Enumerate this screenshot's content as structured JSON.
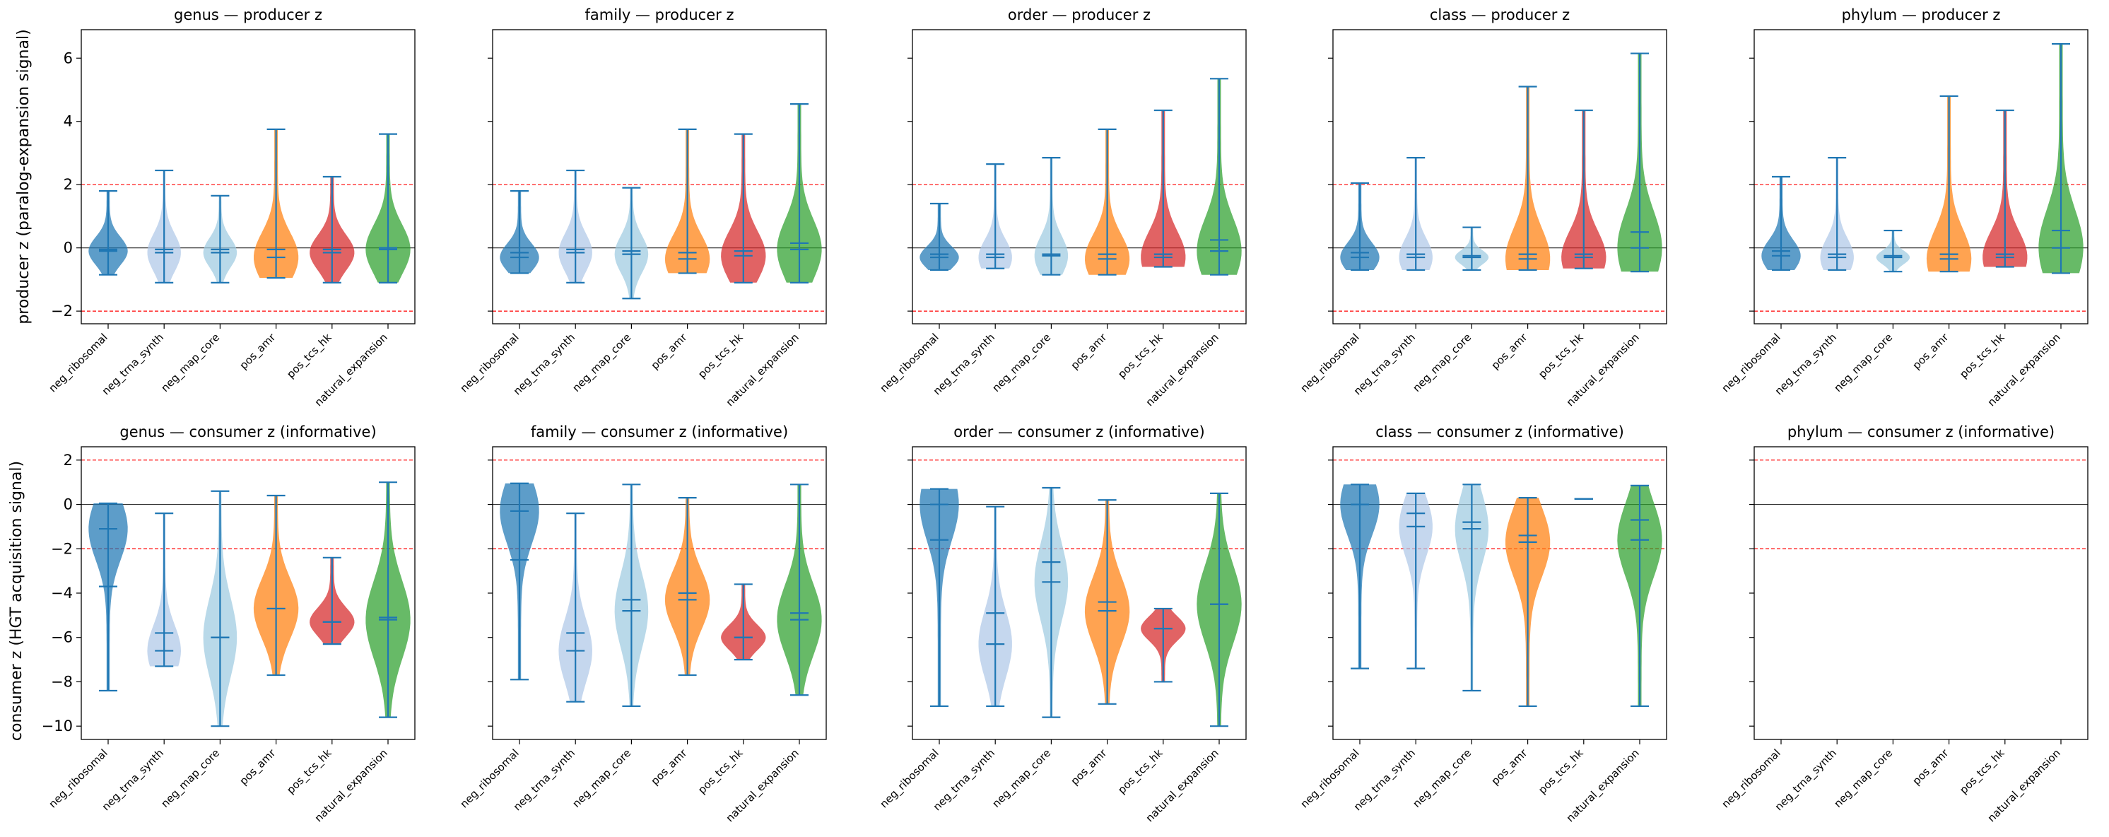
{
  "figure": {
    "row_ylabels": [
      "producer z (paralog-expansion signal)",
      "consumer z (HGT acquisition signal)"
    ],
    "categories": [
      "neg_ribosomal",
      "neg_trna_synth",
      "neg_map_core",
      "pos_amr",
      "pos_tcs_hk",
      "natural_expansion"
    ],
    "colors": {
      "neg_ribosomal": "#1f77b4",
      "neg_trna_synth": "#aec7e8",
      "neg_map_core": "#9ecae1",
      "pos_amr": "#ff7f0e",
      "pos_tcs_hk": "#d62728",
      "natural_expansion": "#2ca02c",
      "whisker": "#1f77b4",
      "threshold_line": "#ff0000",
      "zero_line": "#000000"
    },
    "thresholds": [
      2,
      -2
    ]
  },
  "chart_data": [
    {
      "type": "violin",
      "title": "genus — producer z",
      "ylabel": "producer z (paralog-expansion signal)",
      "ylim": [
        -2.4,
        6.9
      ],
      "yticks": [
        -2,
        0,
        2,
        4,
        6
      ],
      "categories": [
        "neg_ribosomal",
        "neg_trna_synth",
        "neg_map_core",
        "pos_amr",
        "pos_tcs_hk",
        "natural_expansion"
      ],
      "series": [
        {
          "category": "neg_ribosomal",
          "min": -0.85,
          "max": 1.8,
          "mean": -0.05,
          "median": -0.1,
          "width": 0.7
        },
        {
          "category": "neg_trna_synth",
          "min": -1.1,
          "max": 2.45,
          "mean": -0.05,
          "median": -0.15,
          "width": 0.6
        },
        {
          "category": "neg_map_core",
          "min": -1.1,
          "max": 1.65,
          "mean": -0.05,
          "median": -0.15,
          "width": 0.6
        },
        {
          "category": "pos_amr",
          "min": -0.95,
          "max": 3.75,
          "mean": -0.05,
          "median": -0.3,
          "width": 0.8
        },
        {
          "category": "pos_tcs_hk",
          "min": -1.1,
          "max": 2.25,
          "mean": -0.05,
          "median": -0.15,
          "width": 0.8
        },
        {
          "category": "natural_expansion",
          "min": -1.1,
          "max": 3.6,
          "mean": 0.0,
          "median": -0.05,
          "width": 0.8
        }
      ]
    },
    {
      "type": "violin",
      "title": "family — producer z",
      "ylim": [
        -2.4,
        6.9
      ],
      "yticks": [
        -2,
        0,
        2,
        4,
        6
      ],
      "categories": [
        "neg_ribosomal",
        "neg_trna_synth",
        "neg_map_core",
        "pos_amr",
        "pos_tcs_hk",
        "natural_expansion"
      ],
      "series": [
        {
          "category": "neg_ribosomal",
          "min": -0.8,
          "max": 1.8,
          "mean": -0.15,
          "median": -0.3,
          "width": 0.7
        },
        {
          "category": "neg_trna_synth",
          "min": -1.1,
          "max": 2.45,
          "mean": -0.05,
          "median": -0.15,
          "width": 0.6
        },
        {
          "category": "neg_map_core",
          "min": -1.6,
          "max": 1.9,
          "mean": -0.1,
          "median": -0.2,
          "width": 0.6
        },
        {
          "category": "pos_amr",
          "min": -0.8,
          "max": 3.75,
          "mean": -0.15,
          "median": -0.35,
          "width": 0.8
        },
        {
          "category": "pos_tcs_hk",
          "min": -1.1,
          "max": 3.6,
          "mean": -0.1,
          "median": -0.25,
          "width": 0.8
        },
        {
          "category": "natural_expansion",
          "min": -1.1,
          "max": 4.55,
          "mean": 0.15,
          "median": -0.05,
          "width": 0.8
        }
      ]
    },
    {
      "type": "violin",
      "title": "order — producer z",
      "ylim": [
        -2.4,
        6.9
      ],
      "yticks": [
        -2,
        0,
        2,
        4,
        6
      ],
      "categories": [
        "neg_ribosomal",
        "neg_trna_synth",
        "neg_map_core",
        "pos_amr",
        "pos_tcs_hk",
        "natural_expansion"
      ],
      "series": [
        {
          "category": "neg_ribosomal",
          "min": -0.7,
          "max": 1.4,
          "mean": -0.2,
          "median": -0.3,
          "width": 0.7
        },
        {
          "category": "neg_trna_synth",
          "min": -0.65,
          "max": 2.65,
          "mean": -0.2,
          "median": -0.3,
          "width": 0.6
        },
        {
          "category": "neg_map_core",
          "min": -0.85,
          "max": 2.85,
          "mean": -0.2,
          "median": -0.25,
          "width": 0.6
        },
        {
          "category": "pos_amr",
          "min": -0.85,
          "max": 3.75,
          "mean": -0.2,
          "median": -0.35,
          "width": 0.8
        },
        {
          "category": "pos_tcs_hk",
          "min": -0.6,
          "max": 4.35,
          "mean": -0.2,
          "median": -0.3,
          "width": 0.8
        },
        {
          "category": "natural_expansion",
          "min": -0.85,
          "max": 5.35,
          "mean": 0.25,
          "median": -0.1,
          "width": 0.8
        }
      ]
    },
    {
      "type": "violin",
      "title": "class — producer z",
      "ylim": [
        -2.4,
        6.9
      ],
      "yticks": [
        -2,
        0,
        2,
        4,
        6
      ],
      "categories": [
        "neg_ribosomal",
        "neg_trna_synth",
        "neg_map_core",
        "pos_amr",
        "pos_tcs_hk",
        "natural_expansion"
      ],
      "series": [
        {
          "category": "neg_ribosomal",
          "min": -0.7,
          "max": 2.05,
          "mean": -0.15,
          "median": -0.3,
          "width": 0.7
        },
        {
          "category": "neg_trna_synth",
          "min": -0.7,
          "max": 2.85,
          "mean": -0.2,
          "median": -0.3,
          "width": 0.6
        },
        {
          "category": "neg_map_core",
          "min": -0.7,
          "max": 0.65,
          "mean": -0.25,
          "median": -0.3,
          "width": 0.6
        },
        {
          "category": "pos_amr",
          "min": -0.7,
          "max": 5.1,
          "mean": -0.2,
          "median": -0.35,
          "width": 0.8
        },
        {
          "category": "pos_tcs_hk",
          "min": -0.65,
          "max": 4.35,
          "mean": -0.2,
          "median": -0.3,
          "width": 0.8
        },
        {
          "category": "natural_expansion",
          "min": -0.75,
          "max": 6.15,
          "mean": 0.5,
          "median": 0.0,
          "width": 0.8
        }
      ]
    },
    {
      "type": "violin",
      "title": "phylum — producer z",
      "ylim": [
        -2.4,
        6.9
      ],
      "yticks": [
        -2,
        0,
        2,
        4,
        6
      ],
      "categories": [
        "neg_ribosomal",
        "neg_trna_synth",
        "neg_map_core",
        "pos_amr",
        "pos_tcs_hk",
        "natural_expansion"
      ],
      "series": [
        {
          "category": "neg_ribosomal",
          "min": -0.7,
          "max": 2.25,
          "mean": -0.1,
          "median": -0.25,
          "width": 0.7
        },
        {
          "category": "neg_trna_synth",
          "min": -0.7,
          "max": 2.85,
          "mean": -0.2,
          "median": -0.3,
          "width": 0.6
        },
        {
          "category": "neg_map_core",
          "min": -0.75,
          "max": 0.55,
          "mean": -0.25,
          "median": -0.3,
          "width": 0.6
        },
        {
          "category": "pos_amr",
          "min": -0.75,
          "max": 4.8,
          "mean": -0.2,
          "median": -0.35,
          "width": 0.8
        },
        {
          "category": "pos_tcs_hk",
          "min": -0.6,
          "max": 4.35,
          "mean": -0.2,
          "median": -0.3,
          "width": 0.8
        },
        {
          "category": "natural_expansion",
          "min": -0.8,
          "max": 6.45,
          "mean": 0.55,
          "median": 0.0,
          "width": 0.8
        }
      ]
    },
    {
      "type": "violin",
      "title": "genus — consumer z (informative)",
      "ylabel": "consumer z (HGT acquisition signal)",
      "ylim": [
        -10.6,
        2.6
      ],
      "yticks": [
        -10,
        -8,
        -6,
        -4,
        -2,
        0,
        2
      ],
      "categories": [
        "neg_ribosomal",
        "neg_trna_synth",
        "neg_map_core",
        "pos_amr",
        "pos_tcs_hk",
        "natural_expansion"
      ],
      "series": [
        {
          "category": "neg_ribosomal",
          "min": -8.4,
          "max": 0.05,
          "mean": -3.7,
          "median": -1.1,
          "width": 0.7
        },
        {
          "category": "neg_trna_synth",
          "min": -7.3,
          "max": -0.4,
          "mean": -5.8,
          "median": -6.6,
          "width": 0.6
        },
        {
          "category": "neg_map_core",
          "min": -10.0,
          "max": 0.6,
          "mean": -6.0,
          "median": -6.0,
          "width": 0.6
        },
        {
          "category": "pos_amr",
          "min": -7.7,
          "max": 0.4,
          "mean": -4.7,
          "median": -4.7,
          "width": 0.8
        },
        {
          "category": "pos_tcs_hk",
          "min": -6.3,
          "max": -2.4,
          "mean": -5.3,
          "median": -5.3,
          "width": 0.8
        },
        {
          "category": "natural_expansion",
          "min": -9.6,
          "max": 1.0,
          "mean": -5.1,
          "median": -5.2,
          "width": 0.8
        }
      ]
    },
    {
      "type": "violin",
      "title": "family — consumer z (informative)",
      "ylim": [
        -10.6,
        2.6
      ],
      "yticks": [
        -10,
        -8,
        -6,
        -4,
        -2,
        0,
        2
      ],
      "categories": [
        "neg_ribosomal",
        "neg_trna_synth",
        "neg_map_core",
        "pos_amr",
        "pos_tcs_hk",
        "natural_expansion"
      ],
      "series": [
        {
          "category": "neg_ribosomal",
          "min": -7.9,
          "max": 0.95,
          "mean": -2.5,
          "median": -0.3,
          "width": 0.7
        },
        {
          "category": "neg_trna_synth",
          "min": -8.9,
          "max": -0.4,
          "mean": -5.8,
          "median": -6.6,
          "width": 0.6
        },
        {
          "category": "neg_map_core",
          "min": -9.1,
          "max": 0.9,
          "mean": -4.3,
          "median": -4.8,
          "width": 0.6
        },
        {
          "category": "pos_amr",
          "min": -7.7,
          "max": 0.3,
          "mean": -4.0,
          "median": -4.3,
          "width": 0.8
        },
        {
          "category": "pos_tcs_hk",
          "min": -7.0,
          "max": -3.6,
          "mean": -6.0,
          "median": -6.0,
          "width": 0.8
        },
        {
          "category": "natural_expansion",
          "min": -8.6,
          "max": 0.9,
          "mean": -4.9,
          "median": -5.2,
          "width": 0.8
        }
      ]
    },
    {
      "type": "violin",
      "title": "order — consumer z (informative)",
      "ylim": [
        -10.6,
        2.6
      ],
      "yticks": [
        -10,
        -8,
        -6,
        -4,
        -2,
        0,
        2
      ],
      "categories": [
        "neg_ribosomal",
        "neg_trna_synth",
        "neg_map_core",
        "pos_amr",
        "pos_tcs_hk",
        "natural_expansion"
      ],
      "series": [
        {
          "category": "neg_ribosomal",
          "min": -9.1,
          "max": 0.7,
          "mean": -1.6,
          "median": 0.0,
          "width": 0.7
        },
        {
          "category": "neg_trna_synth",
          "min": -9.1,
          "max": -0.1,
          "mean": -4.9,
          "median": -6.3,
          "width": 0.6
        },
        {
          "category": "neg_map_core",
          "min": -9.6,
          "max": 0.75,
          "mean": -2.6,
          "median": -3.5,
          "width": 0.6
        },
        {
          "category": "pos_amr",
          "min": -9.0,
          "max": 0.2,
          "mean": -4.4,
          "median": -4.8,
          "width": 0.8
        },
        {
          "category": "pos_tcs_hk",
          "min": -8.0,
          "max": -4.7,
          "mean": -5.6,
          "median": -5.6,
          "width": 0.8
        },
        {
          "category": "natural_expansion",
          "min": -10.0,
          "max": 0.5,
          "mean": -4.5,
          "median": -4.5,
          "width": 0.8
        }
      ]
    },
    {
      "type": "violin",
      "title": "class — consumer z (informative)",
      "ylim": [
        -10.6,
        2.6
      ],
      "yticks": [
        -10,
        -8,
        -6,
        -4,
        -2,
        0,
        2
      ],
      "categories": [
        "neg_ribosomal",
        "neg_trna_synth",
        "neg_map_core",
        "pos_amr",
        "pos_tcs_hk",
        "natural_expansion"
      ],
      "series": [
        {
          "category": "neg_ribosomal",
          "min": -7.4,
          "max": 0.9,
          "mean": 0.0,
          "median": 0.0,
          "width": 0.7
        },
        {
          "category": "neg_trna_synth",
          "min": -7.4,
          "max": 0.5,
          "mean": -0.4,
          "median": -1.0,
          "width": 0.6
        },
        {
          "category": "neg_map_core",
          "min": -8.4,
          "max": 0.9,
          "mean": -0.8,
          "median": -1.1,
          "width": 0.6
        },
        {
          "category": "pos_amr",
          "min": -9.1,
          "max": 0.3,
          "mean": -1.4,
          "median": -1.7,
          "width": 0.8
        },
        {
          "category": "pos_tcs_hk",
          "min": 0.25,
          "max": 0.25,
          "mean": 0.25,
          "median": 0.25,
          "width": 0.8
        },
        {
          "category": "natural_expansion",
          "min": -9.1,
          "max": 0.85,
          "mean": -0.7,
          "median": -1.6,
          "width": 0.8
        }
      ]
    },
    {
      "type": "violin",
      "title": "phylum — consumer z (informative)",
      "ylim": [
        -10.6,
        2.6
      ],
      "yticks": [
        -10,
        -8,
        -6,
        -4,
        -2,
        0,
        2
      ],
      "categories": [
        "neg_ribosomal",
        "neg_trna_synth",
        "neg_map_core",
        "pos_amr",
        "pos_tcs_hk",
        "natural_expansion"
      ],
      "series": []
    }
  ]
}
